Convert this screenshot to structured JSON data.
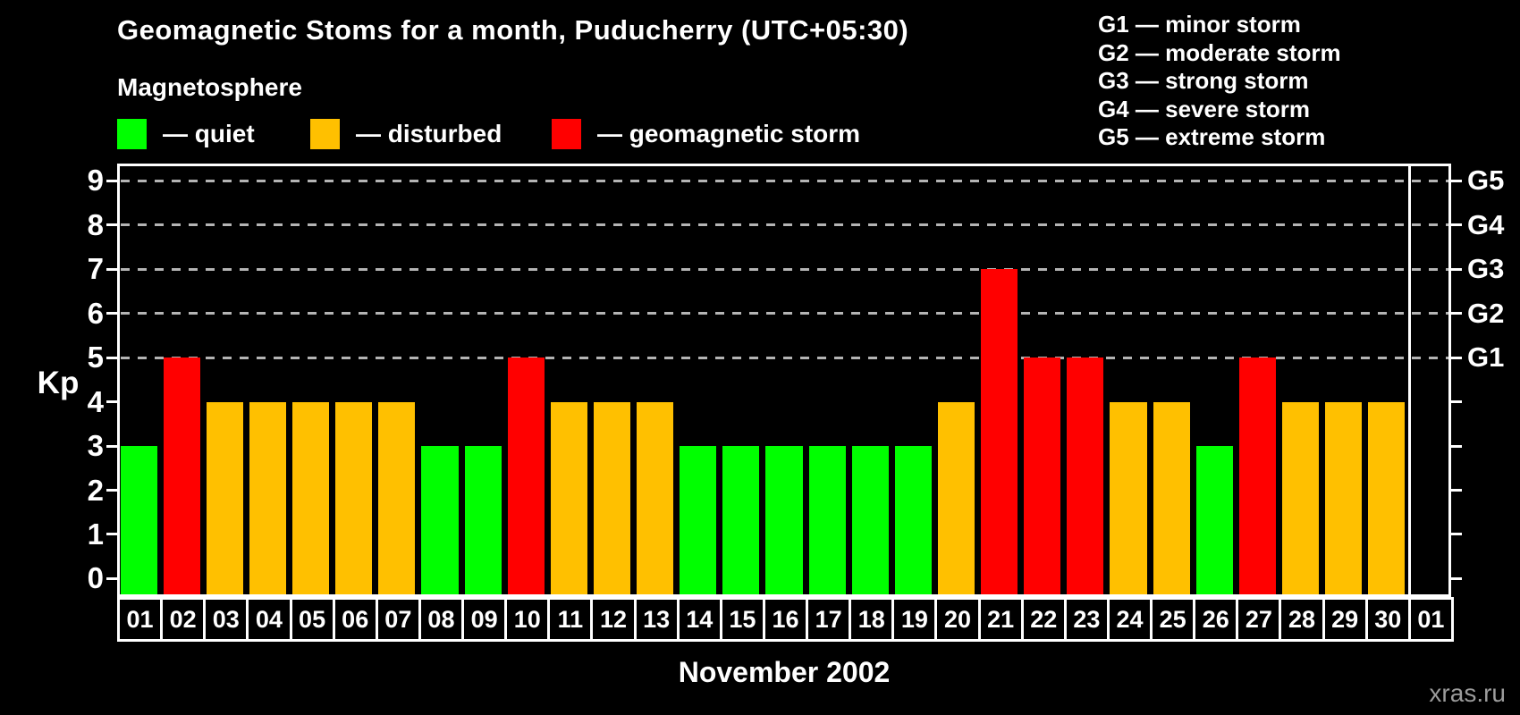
{
  "header": {
    "subtitle": "Magnetosphere"
  },
  "legend": {
    "items": [
      {
        "label": "— quiet",
        "status": "quiet",
        "color": "#00ff00"
      },
      {
        "label": "— disturbed",
        "status": "disturbed",
        "color": "#ffc000"
      },
      {
        "label": "— geomagnetic storm",
        "status": "storm",
        "color": "#ff0000"
      }
    ]
  },
  "g_scale_legend": {
    "items": [
      "G1 — minor storm",
      "G2 — moderate storm",
      "G3 — strong storm",
      "G4 — severe storm",
      "G5 — extreme storm"
    ]
  },
  "chart_data": {
    "type": "bar",
    "title": "Geomagnetic Stoms for a month, Puducherry (UTC+05:30)",
    "xlabel": "November 2002",
    "ylabel": "Kp",
    "ylim": [
      0,
      9
    ],
    "yticks": [
      0,
      1,
      2,
      3,
      4,
      5,
      6,
      7,
      8,
      9
    ],
    "grid": "horizontal dashed gray lines at Kp 5 to 9 only",
    "legend_position": "top-left",
    "right_axis": [
      {
        "kp": 5,
        "label": "G1"
      },
      {
        "kp": 6,
        "label": "G2"
      },
      {
        "kp": 7,
        "label": "G3"
      },
      {
        "kp": 8,
        "label": "G4"
      },
      {
        "kp": 9,
        "label": "G5"
      }
    ],
    "categories": [
      "01",
      "02",
      "03",
      "04",
      "05",
      "06",
      "07",
      "08",
      "09",
      "10",
      "11",
      "12",
      "13",
      "14",
      "15",
      "16",
      "17",
      "18",
      "19",
      "20",
      "21",
      "22",
      "23",
      "24",
      "25",
      "26",
      "27",
      "28",
      "29",
      "30",
      "01"
    ],
    "series": [
      {
        "name": "Kp index",
        "values": [
          3,
          5,
          4,
          4,
          4,
          4,
          4,
          3,
          3,
          5,
          4,
          4,
          4,
          3,
          3,
          3,
          3,
          3,
          3,
          4,
          7,
          5,
          5,
          4,
          4,
          3,
          5,
          4,
          4,
          4,
          null
        ],
        "statuses": [
          "quiet",
          "storm",
          "disturbed",
          "disturbed",
          "disturbed",
          "disturbed",
          "disturbed",
          "quiet",
          "quiet",
          "storm",
          "disturbed",
          "disturbed",
          "disturbed",
          "quiet",
          "quiet",
          "quiet",
          "quiet",
          "quiet",
          "quiet",
          "disturbed",
          "storm",
          "storm",
          "storm",
          "disturbed",
          "disturbed",
          "quiet",
          "storm",
          "disturbed",
          "disturbed",
          "disturbed",
          null
        ]
      }
    ],
    "status_colors": {
      "quiet": "#00ff00",
      "disturbed": "#ffc000",
      "storm": "#ff0000"
    },
    "colors": {
      "background": "#000000",
      "axis": "#ffffff",
      "gridline": "#b4b4b4",
      "text": "#ffffff"
    }
  },
  "footer": {
    "watermark": "xras.ru"
  }
}
